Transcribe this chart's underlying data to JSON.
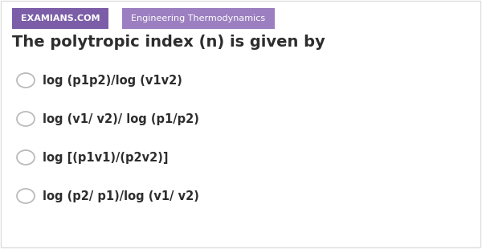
{
  "bg_color": "#ffffff",
  "border_color": "#dddddd",
  "tag1_text": "EXAMIANS.COM",
  "tag1_bg": "#7b5ea7",
  "tag1_fg": "#ffffff",
  "tag2_text": "Engineering Thermodynamics",
  "tag2_bg": "#9b7fc0",
  "tag2_fg": "#ffffff",
  "title": "The polytropic index (n) is given by",
  "title_color": "#2d2d2d",
  "title_fontsize": 14,
  "options": [
    "log (p1p2)/log (v1v2)",
    "log (v1/ v2)/ log (p1/p2)",
    "log [(p1v1)/(p2v2)]",
    "log (p2/ p1)/log (v1/ v2)"
  ],
  "option_color": "#2d2d2d",
  "option_fontsize": 10.5,
  "circle_edge_color": "#bbbbbb",
  "circle_face_color": "#ffffff",
  "tag_fontsize": 8,
  "tag1_bold": true,
  "tag2_bold": false
}
